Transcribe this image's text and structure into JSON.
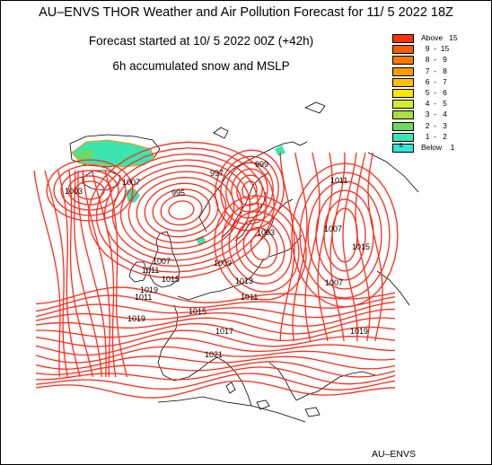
{
  "title": {
    "line1": "AU–ENVS THOR Weather and Air Pollution Forecast for 11/ 5 2022  18Z",
    "line2": "Forecast started at 10/ 5 2022  00Z (+42h)",
    "line3": "6h accumulated snow and MSLP"
  },
  "legend": [
    {
      "label": "Above   15",
      "color": "#ff3300"
    },
    {
      "label": "  9  -  15",
      "color": "#ff5a00"
    },
    {
      "label": "  8  -   9",
      "color": "#ff7a00"
    },
    {
      "label": "  7  -   8",
      "color": "#ff9a00"
    },
    {
      "label": "  6  -   7",
      "color": "#ffc000"
    },
    {
      "label": "  5  -   6",
      "color": "#ffe600"
    },
    {
      "label": "  4  -   5",
      "color": "#d4ec2e"
    },
    {
      "label": "  3  -   4",
      "color": "#a8e040"
    },
    {
      "label": "  2  -   3",
      "color": "#6fd860"
    },
    {
      "label": "  1  -   2",
      "color": "#3ce4b0"
    },
    {
      "label": "Below    1",
      "color": "#30e8d8",
      "swatch_text": "B"
    }
  ],
  "isobar_labels": [
    "1007",
    "1003",
    "995",
    "997",
    "999",
    "1011",
    "1007",
    "1015",
    "1003",
    "1007",
    "1009",
    "1011",
    "1013",
    "1007",
    "1011",
    "1019",
    "1015",
    "1017",
    "1021",
    "1011",
    "1019",
    "1015",
    "1019"
  ],
  "colors": {
    "isobar": "#ff2a1a",
    "coast": "#000000",
    "snow_main": "#3ce4b0",
    "snow_edge": "#ff9a00"
  },
  "footer": "AU–ENVS"
}
